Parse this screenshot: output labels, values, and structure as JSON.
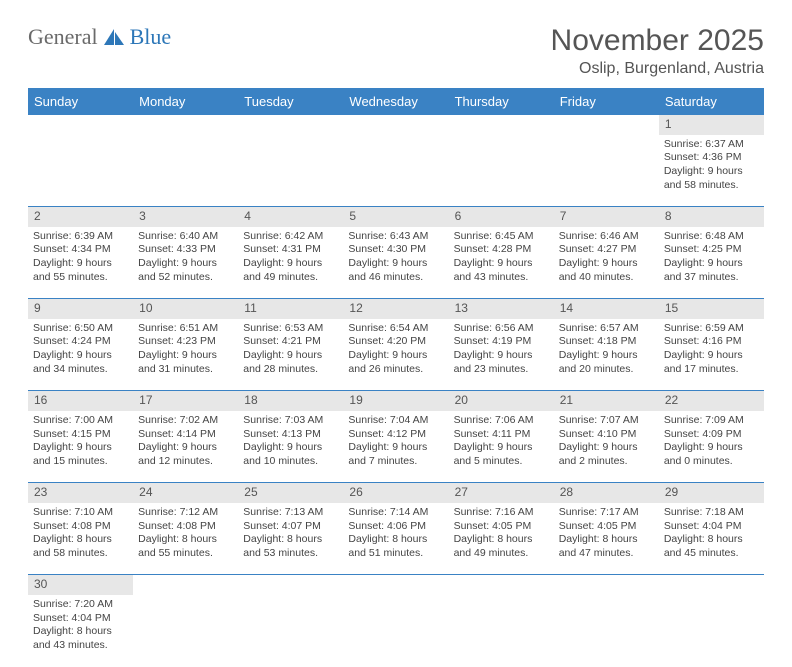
{
  "logo": {
    "text1": "General",
    "text2": "Blue"
  },
  "title": {
    "month": "November 2025",
    "location": "Oslip, Burgenland, Austria"
  },
  "headers": [
    "Sunday",
    "Monday",
    "Tuesday",
    "Wednesday",
    "Thursday",
    "Friday",
    "Saturday"
  ],
  "colors": {
    "header_bg": "#3a82c4",
    "header_text": "#ffffff",
    "daynum_bg": "#e7e7e7",
    "border": "#3a82c4",
    "logo_gray": "#6a6a6a",
    "logo_blue": "#2d77b8"
  },
  "weeks": [
    [
      null,
      null,
      null,
      null,
      null,
      null,
      {
        "n": "1",
        "sr": "6:37 AM",
        "ss": "4:36 PM",
        "dl": "9 hours and 58 minutes."
      }
    ],
    [
      {
        "n": "2",
        "sr": "6:39 AM",
        "ss": "4:34 PM",
        "dl": "9 hours and 55 minutes."
      },
      {
        "n": "3",
        "sr": "6:40 AM",
        "ss": "4:33 PM",
        "dl": "9 hours and 52 minutes."
      },
      {
        "n": "4",
        "sr": "6:42 AM",
        "ss": "4:31 PM",
        "dl": "9 hours and 49 minutes."
      },
      {
        "n": "5",
        "sr": "6:43 AM",
        "ss": "4:30 PM",
        "dl": "9 hours and 46 minutes."
      },
      {
        "n": "6",
        "sr": "6:45 AM",
        "ss": "4:28 PM",
        "dl": "9 hours and 43 minutes."
      },
      {
        "n": "7",
        "sr": "6:46 AM",
        "ss": "4:27 PM",
        "dl": "9 hours and 40 minutes."
      },
      {
        "n": "8",
        "sr": "6:48 AM",
        "ss": "4:25 PM",
        "dl": "9 hours and 37 minutes."
      }
    ],
    [
      {
        "n": "9",
        "sr": "6:50 AM",
        "ss": "4:24 PM",
        "dl": "9 hours and 34 minutes."
      },
      {
        "n": "10",
        "sr": "6:51 AM",
        "ss": "4:23 PM",
        "dl": "9 hours and 31 minutes."
      },
      {
        "n": "11",
        "sr": "6:53 AM",
        "ss": "4:21 PM",
        "dl": "9 hours and 28 minutes."
      },
      {
        "n": "12",
        "sr": "6:54 AM",
        "ss": "4:20 PM",
        "dl": "9 hours and 26 minutes."
      },
      {
        "n": "13",
        "sr": "6:56 AM",
        "ss": "4:19 PM",
        "dl": "9 hours and 23 minutes."
      },
      {
        "n": "14",
        "sr": "6:57 AM",
        "ss": "4:18 PM",
        "dl": "9 hours and 20 minutes."
      },
      {
        "n": "15",
        "sr": "6:59 AM",
        "ss": "4:16 PM",
        "dl": "9 hours and 17 minutes."
      }
    ],
    [
      {
        "n": "16",
        "sr": "7:00 AM",
        "ss": "4:15 PM",
        "dl": "9 hours and 15 minutes."
      },
      {
        "n": "17",
        "sr": "7:02 AM",
        "ss": "4:14 PM",
        "dl": "9 hours and 12 minutes."
      },
      {
        "n": "18",
        "sr": "7:03 AM",
        "ss": "4:13 PM",
        "dl": "9 hours and 10 minutes."
      },
      {
        "n": "19",
        "sr": "7:04 AM",
        "ss": "4:12 PM",
        "dl": "9 hours and 7 minutes."
      },
      {
        "n": "20",
        "sr": "7:06 AM",
        "ss": "4:11 PM",
        "dl": "9 hours and 5 minutes."
      },
      {
        "n": "21",
        "sr": "7:07 AM",
        "ss": "4:10 PM",
        "dl": "9 hours and 2 minutes."
      },
      {
        "n": "22",
        "sr": "7:09 AM",
        "ss": "4:09 PM",
        "dl": "9 hours and 0 minutes."
      }
    ],
    [
      {
        "n": "23",
        "sr": "7:10 AM",
        "ss": "4:08 PM",
        "dl": "8 hours and 58 minutes."
      },
      {
        "n": "24",
        "sr": "7:12 AM",
        "ss": "4:08 PM",
        "dl": "8 hours and 55 minutes."
      },
      {
        "n": "25",
        "sr": "7:13 AM",
        "ss": "4:07 PM",
        "dl": "8 hours and 53 minutes."
      },
      {
        "n": "26",
        "sr": "7:14 AM",
        "ss": "4:06 PM",
        "dl": "8 hours and 51 minutes."
      },
      {
        "n": "27",
        "sr": "7:16 AM",
        "ss": "4:05 PM",
        "dl": "8 hours and 49 minutes."
      },
      {
        "n": "28",
        "sr": "7:17 AM",
        "ss": "4:05 PM",
        "dl": "8 hours and 47 minutes."
      },
      {
        "n": "29",
        "sr": "7:18 AM",
        "ss": "4:04 PM",
        "dl": "8 hours and 45 minutes."
      }
    ],
    [
      {
        "n": "30",
        "sr": "7:20 AM",
        "ss": "4:04 PM",
        "dl": "8 hours and 43 minutes."
      },
      null,
      null,
      null,
      null,
      null,
      null
    ]
  ],
  "labels": {
    "sunrise": "Sunrise: ",
    "sunset": "Sunset: ",
    "daylight": "Daylight: "
  }
}
